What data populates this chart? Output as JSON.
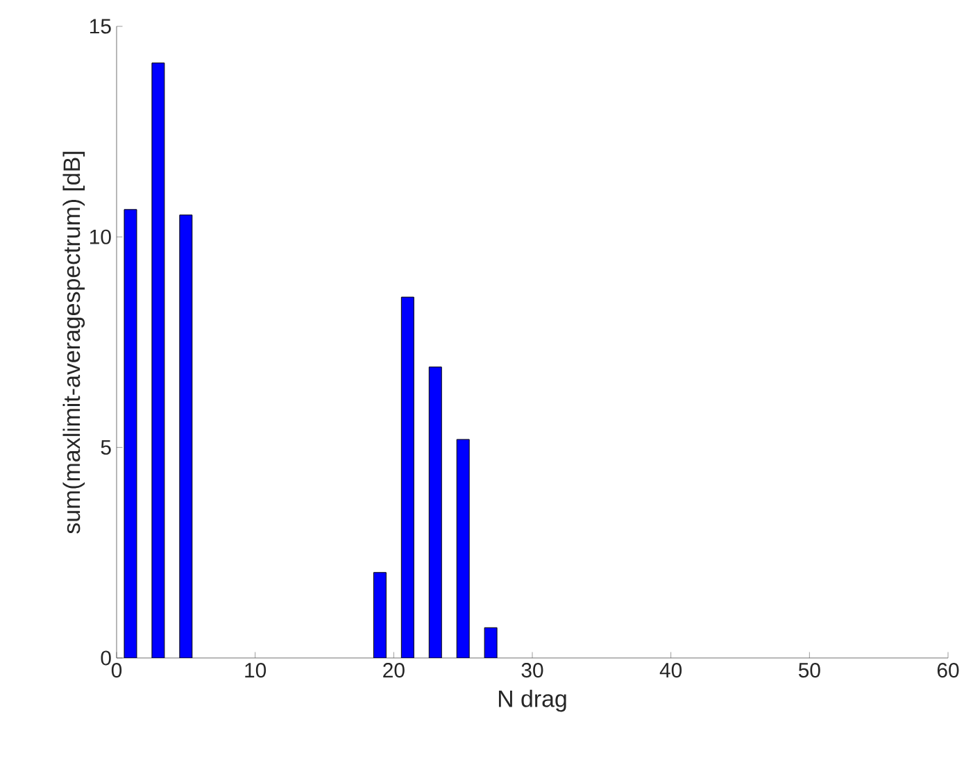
{
  "chart_data": {
    "type": "bar",
    "xlabel": "N drag",
    "ylabel": "sum(maxlimit-averagespectrum) [dB]",
    "x": [
      1,
      3,
      5,
      19,
      21,
      23,
      25,
      27
    ],
    "values": [
      10.65,
      14.13,
      10.52,
      2.03,
      8.57,
      6.91,
      5.19,
      0.72
    ],
    "color": "#0000ff",
    "xlim": [
      0,
      60
    ],
    "xticks": [
      0,
      10,
      20,
      30,
      40,
      50,
      60
    ],
    "ylim": [
      0,
      15
    ],
    "yticks": [
      0,
      5,
      10,
      15
    ]
  }
}
